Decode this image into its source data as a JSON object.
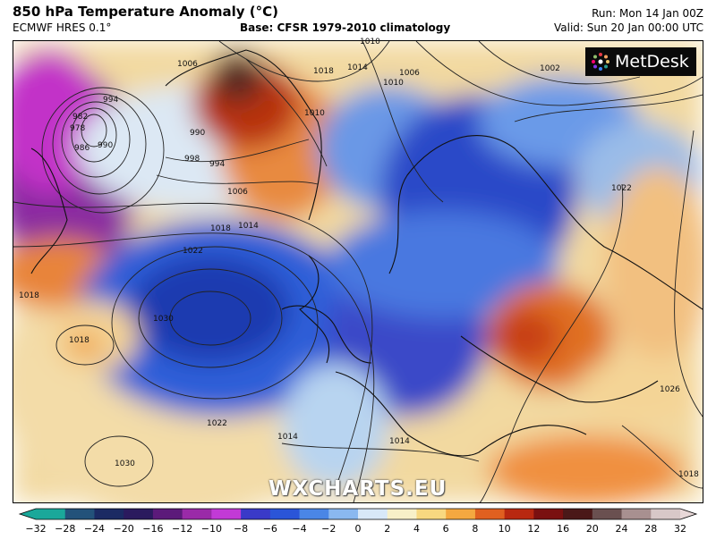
{
  "header": {
    "title": "850 hPa Temperature Anomaly (°C)",
    "model": "ECMWF HRES 0.1°",
    "base": "Base: CFSR 1979-2010 climatology",
    "run": "Run: Mon 14 Jan 00Z",
    "valid": "Valid: Sun 20 Jan 00:00 UTC"
  },
  "logo": {
    "text": "MetDesk"
  },
  "watermark": "WXCHARTS.EU",
  "isobar_labels": [
    "1010",
    "1006",
    "1002",
    "1010",
    "1014",
    "1018",
    "1010",
    "994",
    "990",
    "982",
    "978",
    "986",
    "990",
    "994",
    "998",
    "1006",
    "1014",
    "1018",
    "1022",
    "1018",
    "1018",
    "1030",
    "1030",
    "1022",
    "1022",
    "1026",
    "1014",
    "1014",
    "1018",
    "1006"
  ],
  "colorbar": {
    "ticks": [
      "−32",
      "−28",
      "−24",
      "−20",
      "−16",
      "−12",
      "−10",
      "−8",
      "−6",
      "−4",
      "−2",
      "0",
      "2",
      "4",
      "6",
      "8",
      "10",
      "12",
      "16",
      "20",
      "24",
      "28",
      "32"
    ],
    "colors": [
      "#1aa89a",
      "#23527a",
      "#1b2a63",
      "#2b1a5e",
      "#5c1a7a",
      "#9a2aa8",
      "#c23ad6",
      "#3a3ac8",
      "#2a55d8",
      "#4a86e6",
      "#8ab8f0",
      "#d8e8f8",
      "#f8f0c8",
      "#f8d880",
      "#f4a840",
      "#e06020",
      "#b82810",
      "#7a1010",
      "#4a1818",
      "#6a5050",
      "#a89090",
      "#d8c8c8"
    ]
  }
}
